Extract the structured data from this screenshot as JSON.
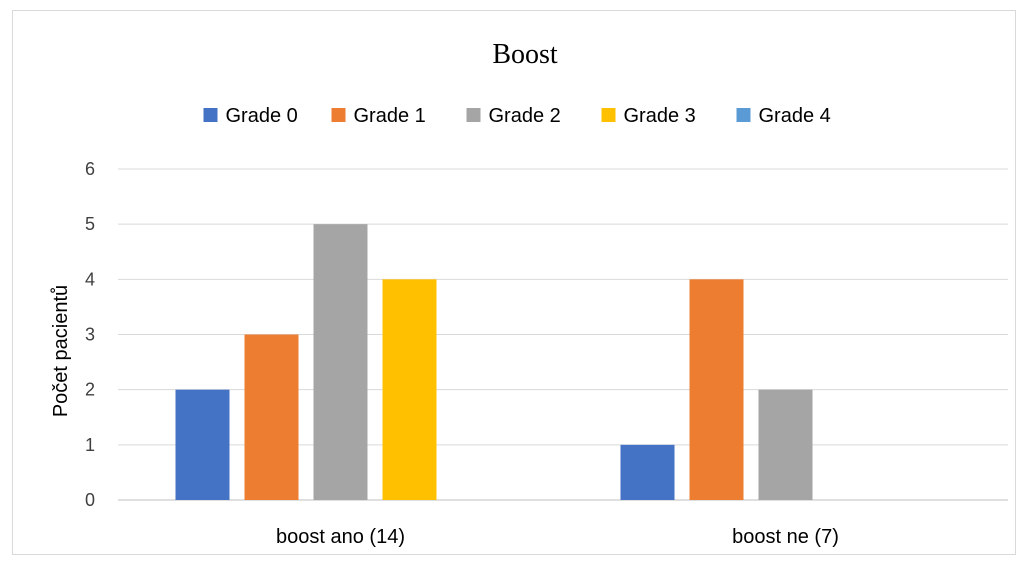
{
  "chart_data": {
    "type": "bar",
    "title": "Boost",
    "xlabel": "",
    "ylabel": "Počet pacientů",
    "categories": [
      "boost ano (14)",
      "boost ne (7)"
    ],
    "ylim": [
      0,
      6
    ],
    "yticks": [
      "0",
      "1",
      "2",
      "3",
      "4",
      "5",
      "6"
    ],
    "grid": true,
    "legend_position": "top",
    "series": [
      {
        "name": "Grade 0",
        "color": "#4472C4",
        "values": [
          2,
          1
        ]
      },
      {
        "name": "Grade 1",
        "color": "#ED7D31",
        "values": [
          3,
          4
        ]
      },
      {
        "name": "Grade 2",
        "color": "#A5A5A5",
        "values": [
          5,
          2
        ]
      },
      {
        "name": "Grade 3",
        "color": "#FFC000",
        "values": [
          4,
          0
        ]
      },
      {
        "name": "Grade 4",
        "color": "#5B9BD5",
        "values": [
          0,
          0
        ]
      }
    ]
  }
}
